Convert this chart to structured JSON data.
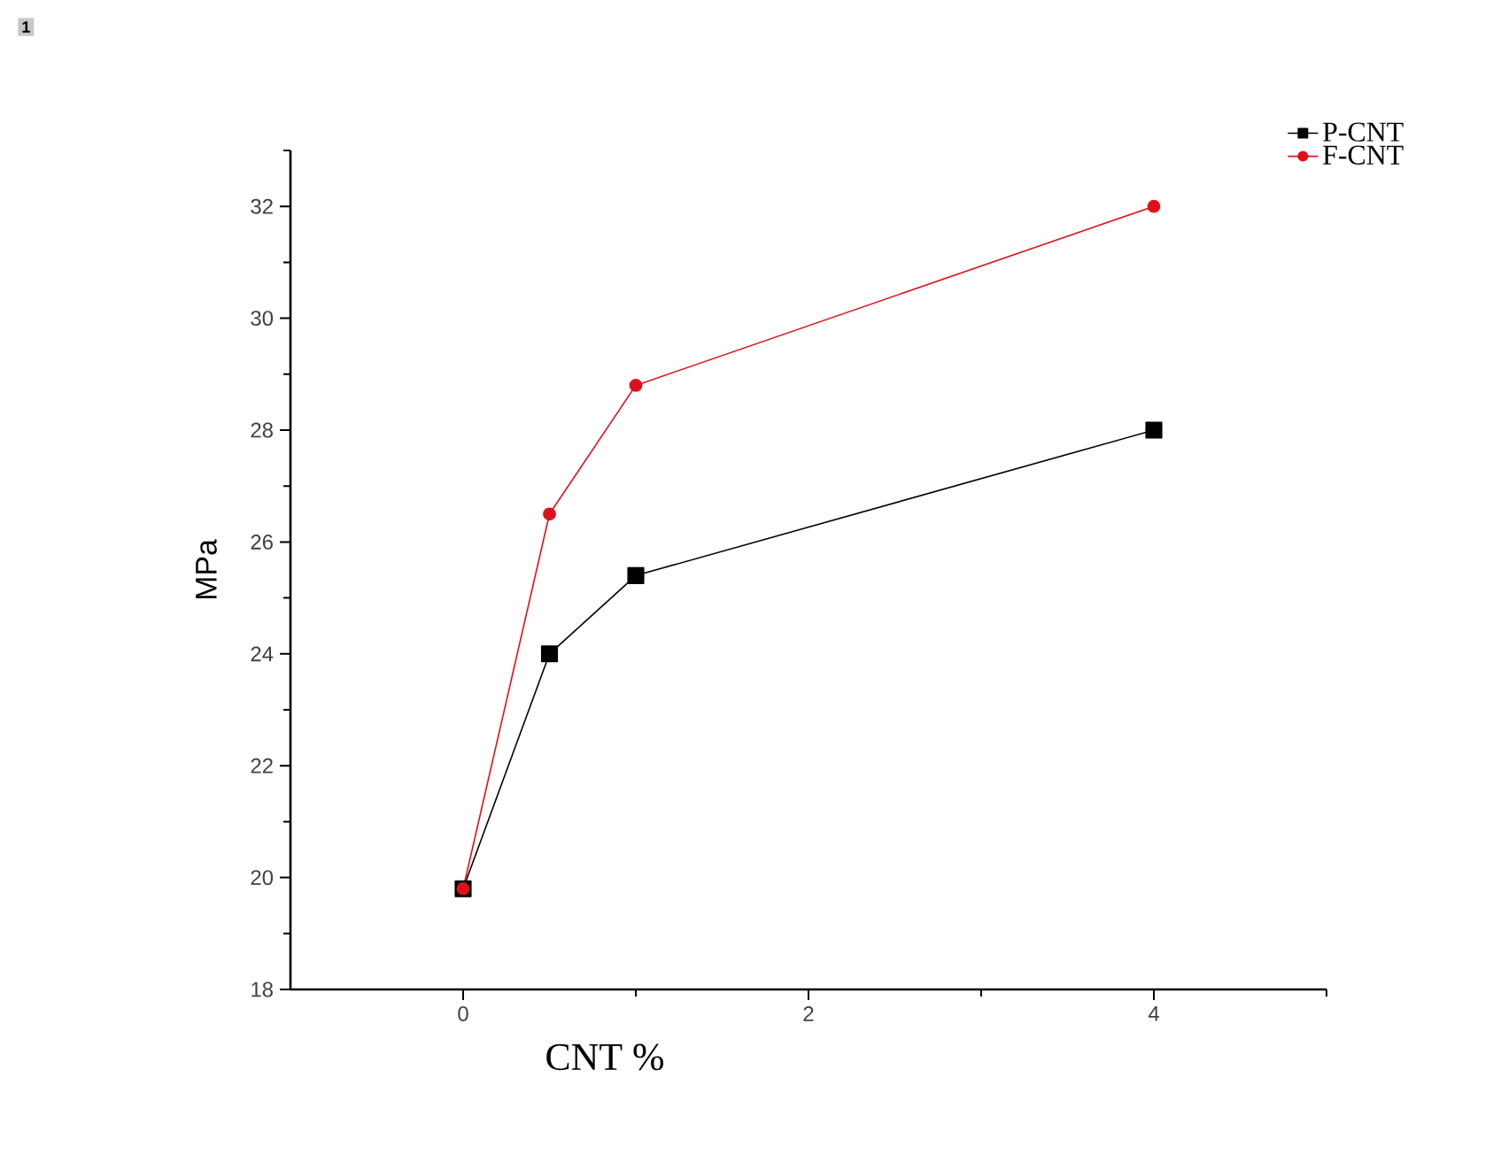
{
  "chart_data": {
    "type": "line",
    "xlabel": "CNT %",
    "ylabel": "MPa",
    "annotations": [
      "1"
    ],
    "xlim": [
      -1,
      5
    ],
    "xticks": [
      0,
      {
        "value": 1,
        "label": null
      },
      2,
      {
        "value": 3,
        "label": null
      },
      4,
      {
        "value": 5,
        "label": null
      }
    ],
    "ylim": [
      18,
      33
    ],
    "yticks": [
      18,
      {
        "value": 19,
        "label": null
      },
      20,
      {
        "value": 21,
        "label": null
      },
      22,
      {
        "value": 23,
        "label": null
      },
      24,
      {
        "value": 25,
        "label": null
      },
      26,
      {
        "value": 27,
        "label": null
      },
      28,
      {
        "value": 29,
        "label": null
      },
      30,
      {
        "value": 31,
        "label": null
      },
      32,
      {
        "value": 33,
        "label": null
      }
    ],
    "x": [
      0,
      0.5,
      1,
      4
    ],
    "series": [
      {
        "name": "P-CNT",
        "color": "#000000",
        "marker": "square",
        "values": [
          19.8,
          24.0,
          25.4,
          28.0
        ]
      },
      {
        "name": "F-CNT",
        "color": "#e0101a",
        "marker": "circle",
        "values": [
          19.8,
          26.5,
          28.8,
          32.0
        ]
      }
    ],
    "legend": "top right",
    "grid": false,
    "line_style": "solid"
  }
}
